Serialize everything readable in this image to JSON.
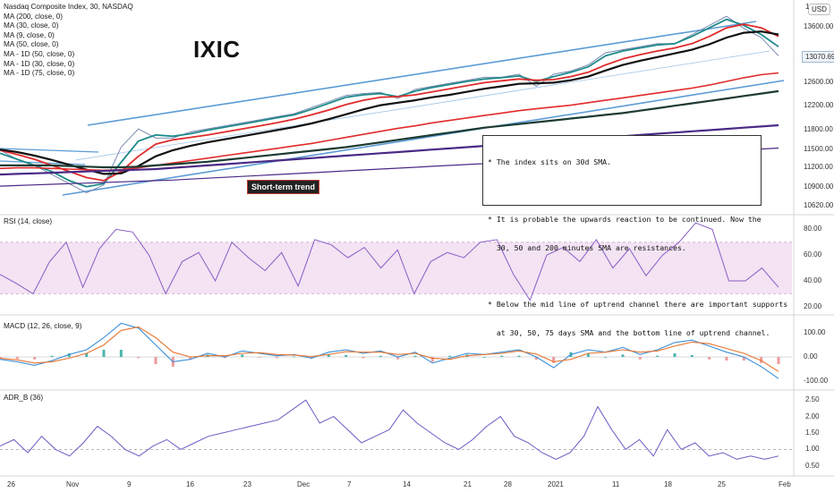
{
  "header": {
    "title": "Nasdaq Composite Index, 30, NASDAQ",
    "indicators": [
      "MA (200, close, 0)",
      "MA (30, close, 0)",
      "MA (9, close, 0)",
      "MA (50, close, 0)",
      "MA - 1D (50, close, 0)",
      "MA - 1D (30, close, 0)",
      "MA - 1D (75, close, 0)"
    ],
    "currency": "USD",
    "top_value": "1"
  },
  "symbol_label": "IXIC",
  "annotation_label": "Short-term trend",
  "note_box": {
    "lines": [
      "* The index sits on 30d SMA.",
      "",
      "* It is probable the upwards reaction to be continued. Now the",
      "  30, 50 and 200 minutes SMA are resistances.",
      "",
      "* Below the mid line of uptrend channel there are important supports",
      "  at 30, 50, 75 days SMA and the bottom line of uptrend channel."
    ]
  },
  "panes": {
    "rsi_label": "RSI (14, close)",
    "macd_label": "MACD (12, 26, close, 9)",
    "adr_label": "ADR_B (36)"
  },
  "last_price_tag": "13070.69",
  "colors": {
    "channel": "#5b9bd5",
    "ma_red": "#e02b2b",
    "ma_black": "#111111",
    "ma_darkgreen": "#1d3b33",
    "ma_purple": "#4a2a86",
    "ma_teal": "#1e8a8a",
    "ma_blue": "#3d7fd1",
    "price": "#6c7fa8",
    "rsi": "#8a5cc4",
    "rsi_band": "#f3e3f3",
    "macd": "#3b8fd8",
    "signal": "#e8742f",
    "hist_up": "#4db6ac",
    "hist_down": "#ef9a9a",
    "adr": "#6a5cc4"
  },
  "chart_data": [
    {
      "type": "line",
      "pane": "price",
      "title": "Nasdaq Composite Index, 30, NASDAQ",
      "x_ticks": [
        "26",
        "Nov",
        "9",
        "16",
        "23",
        "Dec",
        "7",
        "14",
        "21",
        "28",
        "2021",
        "11",
        "18",
        "25",
        "Feb"
      ],
      "y_ticks": [
        13600.0,
        13070.69,
        12600.0,
        12200.0,
        11800.0,
        11500.0,
        11200.0,
        10900.0,
        10620.0
      ],
      "ylim": [
        10520,
        13900
      ],
      "series": [
        {
          "name": "Price",
          "values": [
            11550,
            11400,
            11300,
            11150,
            11000,
            10850,
            10980,
            11600,
            11900,
            11750,
            11750,
            11850,
            11900,
            11950,
            12000,
            12050,
            12100,
            12150,
            12250,
            12350,
            12450,
            12480,
            12500,
            12400,
            12550,
            12600,
            12650,
            12700,
            12750,
            12750,
            12800,
            12600,
            12800,
            12850,
            12950,
            13150,
            13200,
            13250,
            13300,
            13300,
            13450,
            13600,
            13750,
            13550,
            13400,
            13100
          ]
        },
        {
          "name": "MA (9, close, 0)",
          "values": [
            11500,
            11400,
            11300,
            11200,
            11050,
            10950,
            11000,
            11350,
            11700,
            11800,
            11780,
            11820,
            11880,
            11930,
            11980,
            12030,
            12080,
            12130,
            12220,
            12320,
            12420,
            12460,
            12480,
            12430,
            12520,
            12580,
            12630,
            12680,
            12720,
            12740,
            12770,
            12680,
            12760,
            12830,
            12920,
            13100,
            13180,
            13230,
            13280,
            13300,
            13420,
            13560,
            13700,
            13600,
            13450,
            13250
          ]
        },
        {
          "name": "MA (30, close, 0)",
          "values": [
            11550,
            11480,
            11400,
            11300,
            11200,
            11100,
            11050,
            11200,
            11450,
            11650,
            11720,
            11760,
            11800,
            11850,
            11900,
            11950,
            12000,
            12060,
            12130,
            12210,
            12300,
            12370,
            12420,
            12430,
            12460,
            12510,
            12560,
            12610,
            12660,
            12690,
            12720,
            12700,
            12710,
            12760,
            12830,
            12950,
            13050,
            13120,
            13180,
            13230,
            13300,
            13420,
            13560,
            13620,
            13560,
            13420
          ]
        },
        {
          "name": "MA (50, close, 0)",
          "values": [
            11560,
            11520,
            11460,
            11390,
            11310,
            11230,
            11160,
            11170,
            11290,
            11450,
            11550,
            11620,
            11680,
            11730,
            11780,
            11830,
            11880,
            11930,
            11990,
            12060,
            12140,
            12220,
            12290,
            12330,
            12370,
            12420,
            12460,
            12510,
            12560,
            12600,
            12640,
            12650,
            12660,
            12700,
            12760,
            12860,
            12950,
            13020,
            13080,
            13140,
            13200,
            13290,
            13400,
            13480,
            13500,
            13450
          ]
        },
        {
          "name": "MA (200, close, 0)",
          "values": [
            11250,
            11260,
            11260,
            11250,
            11240,
            11230,
            11220,
            11230,
            11260,
            11300,
            11340,
            11380,
            11420,
            11460,
            11500,
            11540,
            11580,
            11620,
            11660,
            11710,
            11760,
            11810,
            11860,
            11910,
            11950,
            12000,
            12040,
            12080,
            12120,
            12160,
            12200,
            12230,
            12260,
            12290,
            12330,
            12370,
            12410,
            12450,
            12490,
            12530,
            12570,
            12620,
            12680,
            12740,
            12790,
            12820
          ]
        },
        {
          "name": "MA - 1D (30, close, 0)",
          "values": [
            11300,
            11300,
            11300,
            11300,
            11290,
            11280,
            11270,
            11270,
            11280,
            11300,
            11320,
            11340,
            11360,
            11390,
            11420,
            11450,
            11480,
            11510,
            11540,
            11570,
            11600,
            11640,
            11680,
            11720,
            11760,
            11800,
            11840,
            11880,
            11920,
            11950,
            11980,
            12010,
            12040,
            12070,
            12100,
            12130,
            12160,
            12200,
            12240,
            12280,
            12320,
            12360,
            12400,
            12440,
            12480,
            12520
          ]
        },
        {
          "name": "MA - 1D (50, close, 0)",
          "values": [
            11150,
            11160,
            11170,
            11180,
            11190,
            11200,
            11210,
            11220,
            11230,
            11240,
            11260,
            11280,
            11300,
            11320,
            11340,
            11360,
            11380,
            11400,
            11420,
            11440,
            11460,
            11480,
            11500,
            11520,
            11540,
            11560,
            11580,
            11600,
            11620,
            11640,
            11660,
            11680,
            11700,
            11720,
            11740,
            11760,
            11780,
            11800,
            11820,
            11840,
            11860,
            11880,
            11900,
            11920,
            11940,
            11960
          ]
        },
        {
          "name": "MA - 1D (75, close, 0)",
          "values": [
            10960,
            10970,
            10980,
            10990,
            11000,
            11010,
            11020,
            11030,
            11040,
            11050,
            11060,
            11075,
            11090,
            11105,
            11120,
            11135,
            11150,
            11165,
            11180,
            11195,
            11210,
            11225,
            11240,
            11255,
            11270,
            11285,
            11300,
            11315,
            11330,
            11345,
            11360,
            11375,
            11390,
            11405,
            11420,
            11435,
            11450,
            11465,
            11480,
            11495,
            11510,
            11525,
            11540,
            11555,
            11570,
            11585
          ]
        }
      ]
    },
    {
      "type": "line",
      "pane": "rsi",
      "title": "RSI (14, close)",
      "y_ticks": [
        80.0,
        60.0,
        40.0,
        20.0
      ],
      "ylim": [
        15,
        90
      ],
      "band": [
        30,
        70
      ],
      "series": [
        {
          "name": "RSI",
          "values": [
            45,
            38,
            30,
            55,
            70,
            35,
            65,
            80,
            78,
            60,
            30,
            55,
            62,
            40,
            70,
            58,
            48,
            62,
            36,
            72,
            68,
            58,
            66,
            50,
            64,
            30,
            55,
            62,
            58,
            70,
            72,
            45,
            25,
            60,
            66,
            55,
            72,
            50,
            65,
            44,
            60,
            70,
            85,
            80,
            40,
            40,
            50,
            35
          ]
        }
      ]
    },
    {
      "type": "line",
      "pane": "macd",
      "title": "MACD (12, 26, close, 9)",
      "y_ticks": [
        100.0,
        0.0,
        -100.0
      ],
      "ylim": [
        -130,
        160
      ],
      "series": [
        {
          "name": "MACD",
          "values": [
            -10,
            -20,
            -35,
            -15,
            10,
            30,
            80,
            140,
            120,
            50,
            -20,
            -10,
            15,
            0,
            25,
            15,
            5,
            10,
            -5,
            20,
            30,
            15,
            25,
            0,
            20,
            -25,
            -5,
            15,
            10,
            20,
            30,
            0,
            -45,
            10,
            30,
            20,
            40,
            10,
            30,
            60,
            70,
            45,
            20,
            0,
            -40,
            -90
          ]
        },
        {
          "name": "Signal",
          "values": [
            -5,
            -12,
            -25,
            -20,
            -5,
            15,
            50,
            110,
            125,
            80,
            20,
            0,
            5,
            5,
            15,
            18,
            10,
            8,
            2,
            10,
            22,
            20,
            20,
            10,
            15,
            -5,
            -10,
            5,
            10,
            15,
            25,
            12,
            -20,
            -10,
            15,
            20,
            30,
            20,
            25,
            45,
            62,
            55,
            35,
            15,
            -15,
            -60
          ]
        }
      ]
    },
    {
      "type": "line",
      "pane": "adr",
      "title": "ADR_B (36)",
      "y_ticks": [
        2.5,
        2.0,
        1.5,
        1.0,
        0.5
      ],
      "ylim": [
        0.25,
        2.75
      ],
      "series": [
        {
          "name": "ADR_B",
          "values": [
            1.1,
            1.3,
            0.9,
            1.4,
            1.0,
            0.8,
            1.2,
            1.7,
            1.4,
            1.0,
            0.8,
            1.1,
            1.3,
            1.0,
            1.2,
            1.4,
            1.5,
            1.6,
            1.7,
            1.8,
            1.9,
            2.2,
            2.5,
            1.8,
            2.0,
            1.6,
            1.2,
            1.4,
            1.6,
            2.2,
            1.8,
            1.5,
            1.2,
            1.0,
            1.3,
            1.7,
            2.0,
            1.4,
            1.2,
            0.9,
            0.7,
            0.9,
            1.4,
            2.3,
            1.6,
            1.0,
            1.3,
            0.8,
            1.6,
            1.0,
            1.2,
            0.8,
            0.9,
            0.7,
            0.8,
            0.7,
            0.8
          ]
        }
      ]
    }
  ]
}
